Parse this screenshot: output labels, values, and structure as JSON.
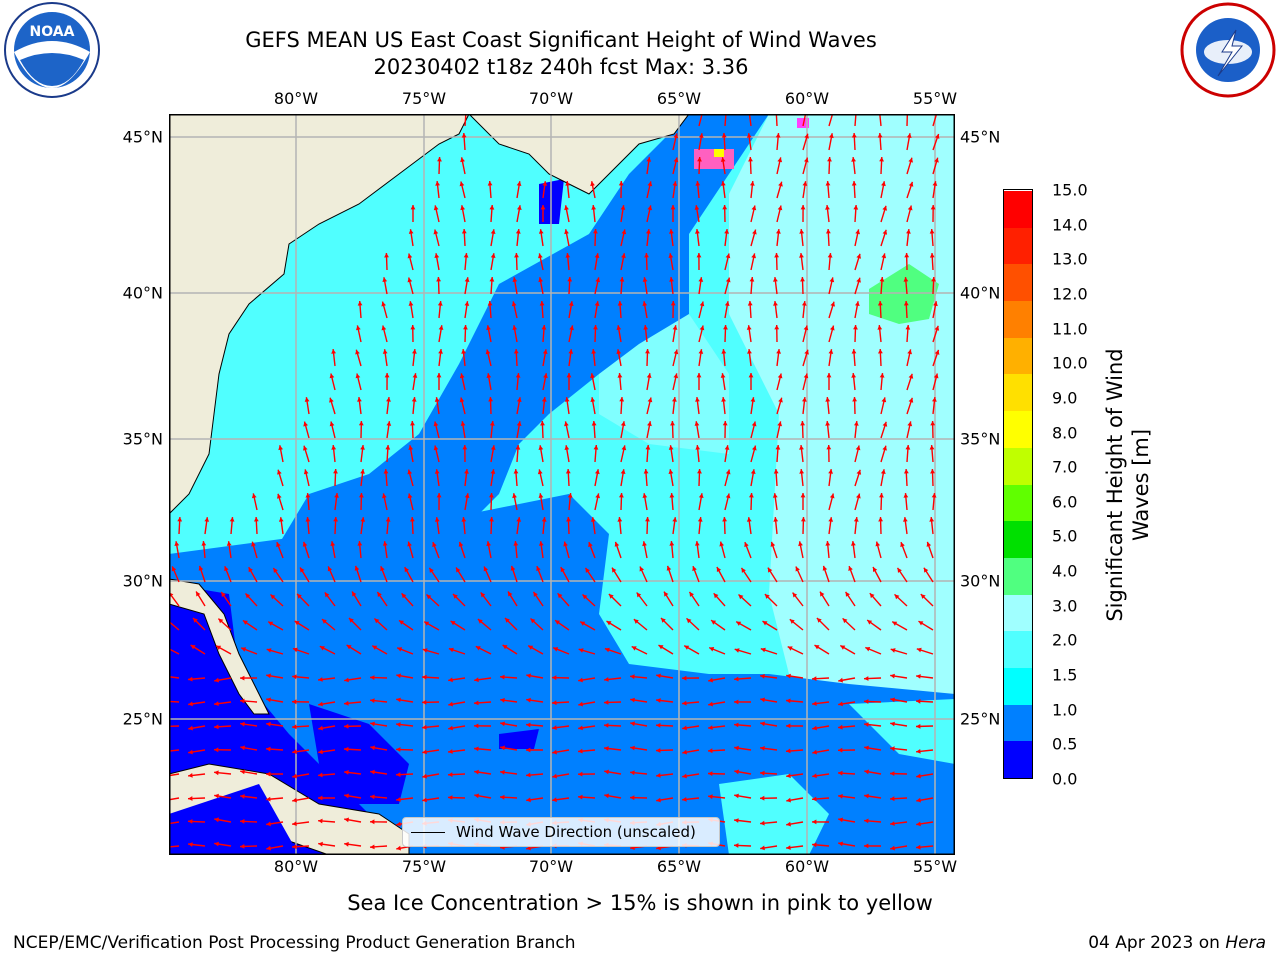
{
  "header": {
    "title_line1": "GEFS MEAN US East Coast Significant Height of Wind Waves",
    "title_line2": "20230402 t18z 240h fcst   Max: 3.36"
  },
  "logos": {
    "noara_text": "NOAA",
    "nws_text": "NATIONAL WEATHER SERVICE"
  },
  "map": {
    "lon_ticks": [
      "80°W",
      "75°W",
      "70°W",
      "65°W",
      "60°W",
      "55°W"
    ],
    "lat_ticks": [
      "45°N",
      "40°N",
      "35°N",
      "30°N",
      "25°N"
    ],
    "legend_label": "Wind Wave Direction (unscaled)",
    "colors": {
      "land": "#efedda",
      "arrow": "#ff0000",
      "coast": "#000000",
      "grid": "#b4b4b4"
    }
  },
  "colorbar": {
    "title": "Significant Height of Wind\nWaves [m]",
    "labels": [
      "15.0",
      "14.0",
      "13.0",
      "12.0",
      "11.0",
      "10.0",
      "9.0",
      "8.0",
      "7.0",
      "6.0",
      "5.0",
      "4.0",
      "3.0",
      "2.0",
      "1.5",
      "1.0",
      "0.5",
      "0.0"
    ],
    "colors": [
      "#0000ff",
      "#0080ff",
      "#00ffff",
      "#50ffff",
      "#a0ffff",
      "#50ff80",
      "#00e000",
      "#60ff00",
      "#c0ff00",
      "#ffff00",
      "#ffe000",
      "#ffb000",
      "#ff8000",
      "#ff5000",
      "#ff2000",
      "#ff0000"
    ]
  },
  "footer": {
    "note": "Sea Ice Concentration > 15% is shown in pink to yellow",
    "credit": "NCEP/EMC/Verification Post Processing Product Generation Branch",
    "date": "04 Apr 2023 on",
    "machine": "Hera"
  }
}
